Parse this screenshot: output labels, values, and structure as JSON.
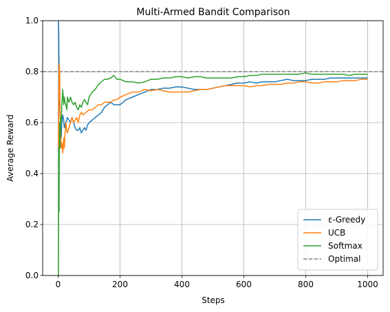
{
  "chart_data": {
    "type": "line",
    "title": "Multi-Armed Bandit Comparison",
    "xlabel": "Steps",
    "ylabel": "Average Reward",
    "xlim": [
      -50,
      1050
    ],
    "ylim": [
      0.0,
      1.0
    ],
    "xticks": [
      0,
      200,
      400,
      600,
      800,
      1000
    ],
    "yticks": [
      0.0,
      0.2,
      0.4,
      0.6,
      0.8,
      1.0
    ],
    "xtick_labels": [
      "0",
      "200",
      "400",
      "600",
      "800",
      "1000"
    ],
    "ytick_labels": [
      "0.0",
      "0.2",
      "0.4",
      "0.6",
      "0.8",
      "1.0"
    ],
    "grid": true,
    "legend_position": "lower-right",
    "series": [
      {
        "name": "ε-Greedy",
        "color": "#1f77b4",
        "x": [
          1,
          2,
          3,
          5,
          8,
          10,
          12,
          15,
          18,
          20,
          25,
          30,
          35,
          40,
          45,
          50,
          55,
          60,
          65,
          70,
          75,
          80,
          85,
          90,
          95,
          100,
          110,
          120,
          130,
          140,
          150,
          160,
          170,
          180,
          190,
          200,
          220,
          240,
          260,
          280,
          300,
          320,
          340,
          360,
          380,
          400,
          420,
          440,
          460,
          480,
          500,
          520,
          540,
          560,
          580,
          600,
          620,
          640,
          660,
          680,
          700,
          720,
          740,
          760,
          780,
          800,
          820,
          840,
          860,
          880,
          900,
          920,
          940,
          960,
          980,
          1000
        ],
        "values": [
          1.0,
          0.95,
          0.8,
          0.67,
          0.58,
          0.54,
          0.6,
          0.63,
          0.61,
          0.58,
          0.6,
          0.62,
          0.61,
          0.6,
          0.62,
          0.6,
          0.58,
          0.57,
          0.57,
          0.58,
          0.56,
          0.57,
          0.58,
          0.57,
          0.59,
          0.6,
          0.61,
          0.62,
          0.63,
          0.64,
          0.66,
          0.67,
          0.68,
          0.67,
          0.67,
          0.67,
          0.69,
          0.7,
          0.71,
          0.72,
          0.73,
          0.73,
          0.735,
          0.735,
          0.74,
          0.74,
          0.735,
          0.73,
          0.73,
          0.73,
          0.735,
          0.74,
          0.745,
          0.75,
          0.755,
          0.755,
          0.76,
          0.755,
          0.76,
          0.76,
          0.76,
          0.765,
          0.77,
          0.765,
          0.765,
          0.765,
          0.77,
          0.77,
          0.77,
          0.775,
          0.775,
          0.775,
          0.775,
          0.775,
          0.775,
          0.775
        ]
      },
      {
        "name": "UCB",
        "color": "#ff7f0e",
        "x": [
          1,
          2,
          3,
          4,
          5,
          6,
          7,
          8,
          10,
          12,
          15,
          18,
          20,
          22,
          25,
          28,
          30,
          35,
          40,
          45,
          50,
          55,
          60,
          65,
          70,
          75,
          80,
          90,
          100,
          110,
          120,
          130,
          140,
          150,
          160,
          170,
          180,
          190,
          200,
          220,
          240,
          260,
          280,
          300,
          320,
          340,
          360,
          380,
          400,
          420,
          440,
          460,
          480,
          500,
          520,
          540,
          560,
          580,
          600,
          620,
          640,
          660,
          680,
          700,
          720,
          740,
          760,
          780,
          800,
          820,
          840,
          860,
          880,
          900,
          920,
          940,
          960,
          980,
          1000
        ],
        "values": [
          0.5,
          0.67,
          0.8,
          0.83,
          0.8,
          0.67,
          0.62,
          0.55,
          0.5,
          0.52,
          0.48,
          0.54,
          0.5,
          0.55,
          0.6,
          0.57,
          0.56,
          0.58,
          0.6,
          0.62,
          0.6,
          0.61,
          0.62,
          0.6,
          0.63,
          0.64,
          0.63,
          0.64,
          0.65,
          0.65,
          0.66,
          0.67,
          0.67,
          0.68,
          0.68,
          0.68,
          0.69,
          0.69,
          0.7,
          0.71,
          0.72,
          0.72,
          0.73,
          0.725,
          0.73,
          0.725,
          0.72,
          0.72,
          0.72,
          0.72,
          0.725,
          0.73,
          0.73,
          0.735,
          0.74,
          0.745,
          0.745,
          0.745,
          0.745,
          0.74,
          0.745,
          0.745,
          0.75,
          0.75,
          0.75,
          0.755,
          0.755,
          0.76,
          0.76,
          0.755,
          0.755,
          0.76,
          0.76,
          0.76,
          0.765,
          0.765,
          0.765,
          0.77,
          0.77
        ]
      },
      {
        "name": "Softmax",
        "color": "#2ca02c",
        "x": [
          1,
          2,
          3,
          4,
          5,
          6,
          7,
          8,
          10,
          12,
          15,
          18,
          20,
          22,
          25,
          28,
          30,
          35,
          40,
          45,
          50,
          55,
          60,
          65,
          70,
          75,
          80,
          85,
          90,
          95,
          100,
          110,
          120,
          130,
          140,
          150,
          160,
          170,
          180,
          190,
          200,
          220,
          240,
          260,
          280,
          300,
          320,
          340,
          360,
          380,
          400,
          420,
          440,
          460,
          480,
          500,
          520,
          540,
          560,
          580,
          600,
          620,
          640,
          660,
          680,
          700,
          720,
          740,
          760,
          780,
          800,
          820,
          840,
          860,
          880,
          900,
          920,
          940,
          960,
          980,
          1000
        ],
        "values": [
          0.0,
          0.5,
          0.25,
          0.5,
          0.6,
          0.5,
          0.57,
          0.62,
          0.6,
          0.67,
          0.73,
          0.67,
          0.7,
          0.68,
          0.67,
          0.65,
          0.7,
          0.68,
          0.7,
          0.68,
          0.67,
          0.68,
          0.66,
          0.65,
          0.67,
          0.66,
          0.68,
          0.69,
          0.68,
          0.67,
          0.7,
          0.72,
          0.73,
          0.75,
          0.76,
          0.77,
          0.77,
          0.775,
          0.785,
          0.77,
          0.77,
          0.76,
          0.76,
          0.755,
          0.76,
          0.77,
          0.77,
          0.775,
          0.775,
          0.78,
          0.78,
          0.775,
          0.78,
          0.78,
          0.775,
          0.775,
          0.775,
          0.775,
          0.775,
          0.78,
          0.78,
          0.785,
          0.785,
          0.79,
          0.79,
          0.79,
          0.79,
          0.79,
          0.79,
          0.79,
          0.795,
          0.79,
          0.79,
          0.79,
          0.79,
          0.79,
          0.79,
          0.785,
          0.79,
          0.79,
          0.79
        ]
      }
    ],
    "reference_lines": [
      {
        "name": "Optimal",
        "y": 0.8,
        "color": "#808080",
        "style": "dashed"
      }
    ]
  }
}
